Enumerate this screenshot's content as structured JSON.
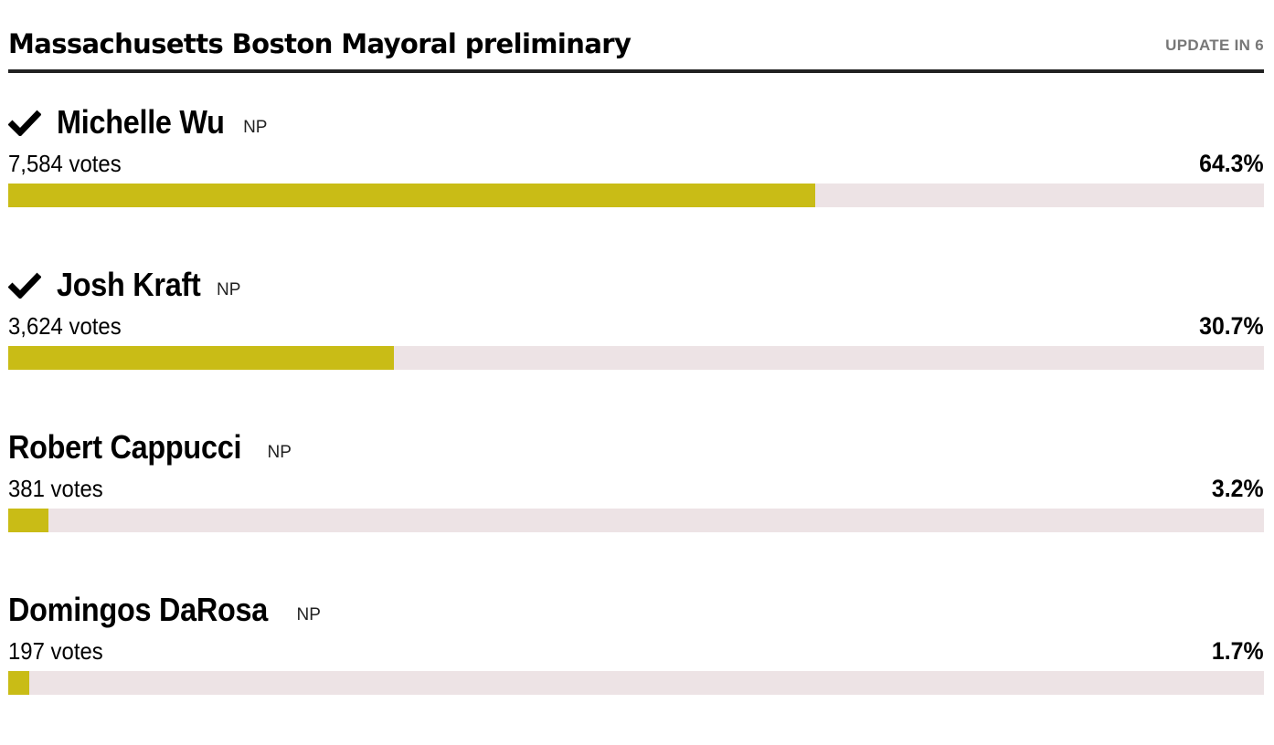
{
  "header": {
    "title": "Massachusetts Boston Mayoral preliminary",
    "update_label": "UPDATE IN 6"
  },
  "colors": {
    "bar_fill": "#c9bc16",
    "bar_track": "#ede3e5"
  },
  "candidates": [
    {
      "name": "Michelle Wu",
      "party": "NP",
      "votes": "7,584 votes",
      "percent": "64.3%",
      "percent_value": 64.3,
      "winner_check": true,
      "check_icon": "checkmark-icon"
    },
    {
      "name": "Josh Kraft",
      "party": "NP",
      "votes": "3,624 votes",
      "percent": "30.7%",
      "percent_value": 30.7,
      "winner_check": true,
      "check_icon": "checkmark-icon"
    },
    {
      "name": "Robert Cappucci",
      "party": "NP",
      "votes": "381 votes",
      "percent": "3.2%",
      "percent_value": 3.2,
      "winner_check": false
    },
    {
      "name": "Domingos DaRosa",
      "party": "NP",
      "votes": "197 votes",
      "percent": "1.7%",
      "percent_value": 1.7,
      "winner_check": false
    }
  ]
}
